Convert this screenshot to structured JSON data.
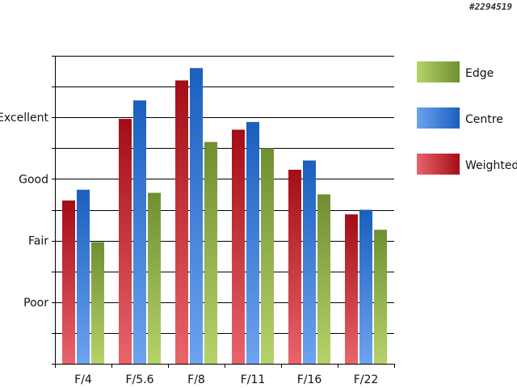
{
  "watermark": "#2294519",
  "chart_data": {
    "type": "bar",
    "categories": [
      "F/4",
      "F/5.6",
      "F/8",
      "F/11",
      "F/16",
      "F/22"
    ],
    "y_tick_labels": [
      {
        "label": "Poor",
        "value": 2
      },
      {
        "label": "Fair",
        "value": 4
      },
      {
        "label": "Good",
        "value": 6
      },
      {
        "label": "Excellent",
        "value": 8
      }
    ],
    "ylim": [
      0,
      10
    ],
    "gridlines": true,
    "legend_placement": "right",
    "series": [
      {
        "name": "Weighted",
        "values": [
          5.3,
          7.95,
          9.2,
          7.6,
          6.3,
          4.85
        ]
      },
      {
        "name": "Centre",
        "values": [
          5.65,
          8.55,
          9.6,
          7.85,
          6.6,
          5.0
        ]
      },
      {
        "name": "Edge",
        "values": [
          3.95,
          5.55,
          7.2,
          7.0,
          5.5,
          4.35
        ]
      }
    ],
    "legend_order": [
      "Edge",
      "Centre",
      "Weighted"
    ],
    "colors": {
      "Weighted": {
        "dark": "#a30d16",
        "light": "#e9646b"
      },
      "Centre": {
        "dark": "#1a5fbf",
        "light": "#6da3ef"
      },
      "Edge": {
        "dark": "#6f8f32",
        "light": "#b6d26a"
      }
    }
  }
}
